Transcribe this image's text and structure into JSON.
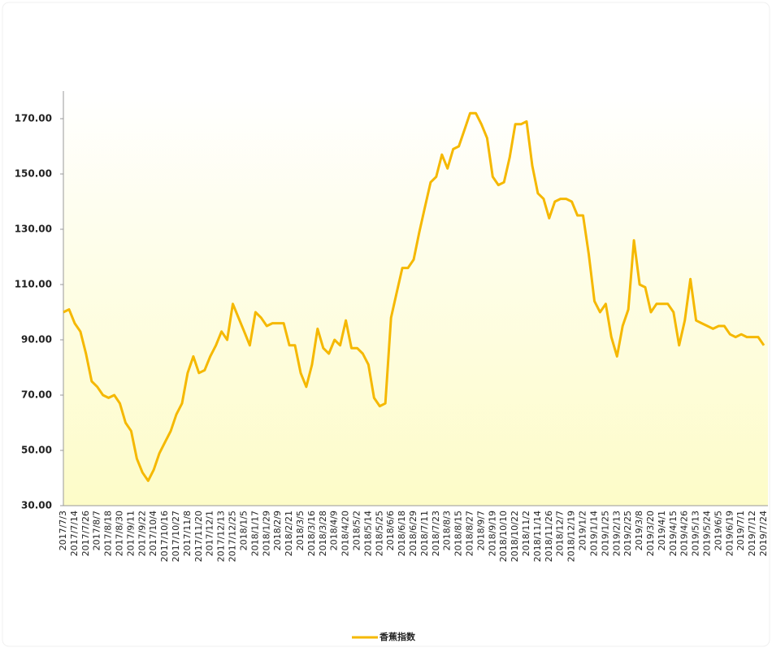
{
  "chart_data": {
    "type": "line",
    "categories": [
      "2017/7/3",
      null,
      "2017/7/14",
      null,
      "2017/7/26",
      null,
      "2017/8/7",
      null,
      "2017/8/18",
      null,
      "2017/8/30",
      null,
      "2017/9/11",
      null,
      "2017/9/22",
      null,
      "2017/10/4",
      null,
      "2017/10/16",
      null,
      "2017/10/27",
      null,
      "2017/11/8",
      null,
      "2017/11/20",
      null,
      "2017/12/1",
      null,
      "2017/12/13",
      null,
      "2017/12/25",
      null,
      "2018/1/5",
      null,
      "2018/1/17",
      null,
      "2018/1/29",
      null,
      "2018/2/9",
      null,
      "2018/2/21",
      null,
      "2018/3/5",
      null,
      "2018/3/16",
      null,
      "2018/3/28",
      null,
      "2018/4/9",
      null,
      "2018/4/20",
      null,
      "2018/5/2",
      null,
      "2018/5/14",
      null,
      "2018/5/25",
      null,
      "2018/6/6",
      null,
      "2018/6/18",
      null,
      "2018/6/29",
      null,
      "2018/7/11",
      null,
      "2018/7/23",
      null,
      "2018/8/3",
      null,
      "2018/8/15",
      null,
      "2018/8/27",
      null,
      "2018/9/7",
      null,
      "2018/9/19",
      null,
      "2018/10/10",
      null,
      "2018/10/22",
      null,
      "2018/11/2",
      null,
      "2018/11/14",
      null,
      "2018/11/26",
      null,
      "2018/12/7",
      null,
      "2018/12/19",
      null,
      "2019/1/2",
      null,
      "2019/1/14",
      null,
      "2019/1/25",
      null,
      "2019/2/13",
      null,
      "2019/2/25",
      null,
      "2019/3/8",
      null,
      "2019/3/20",
      null,
      "2019/4/1",
      null,
      "2019/4/15",
      null,
      "2019/4/26",
      null,
      "2019/5/13",
      null,
      "2019/5/24",
      null,
      "2019/6/5",
      null,
      "2019/6/19",
      null,
      "2019/7/1",
      null,
      "2019/7/12",
      null,
      "2019/7/24"
    ],
    "series": [
      {
        "name": "香蕉指数",
        "color": "#f5b800",
        "values": [
          100,
          101,
          96,
          93,
          85,
          75,
          73,
          70,
          69,
          70,
          67,
          60,
          57,
          47,
          42,
          39,
          43,
          49,
          53,
          57,
          63,
          67,
          78,
          84,
          78,
          79,
          84,
          88,
          93,
          90,
          103,
          98,
          93,
          88,
          100,
          98,
          95,
          96,
          96,
          96,
          88,
          88,
          78,
          73,
          81,
          94,
          87,
          85,
          90,
          88,
          97,
          87,
          87,
          85,
          81,
          69,
          66,
          67,
          98,
          107,
          116,
          116,
          119,
          129,
          138,
          147,
          149,
          157,
          152,
          159,
          160,
          166,
          172,
          172,
          168,
          163,
          149,
          146,
          147,
          156,
          168,
          168,
          169,
          153,
          143,
          141,
          134,
          140,
          141,
          141,
          140,
          135,
          135,
          121,
          104,
          100,
          103,
          91,
          84,
          95,
          101,
          126,
          110,
          109,
          100,
          103,
          103,
          103,
          100,
          88,
          97,
          112,
          97,
          96,
          95,
          94,
          95,
          95,
          92,
          91,
          92,
          91,
          91,
          91,
          88
        ]
      }
    ],
    "ylim": [
      30,
      180
    ],
    "yticks": [
      {
        "value": 30,
        "label": "30.00"
      },
      {
        "value": 50,
        "label": "50.00"
      },
      {
        "value": 70,
        "label": "70.00"
      },
      {
        "value": 90,
        "label": "90.00"
      },
      {
        "value": 110,
        "label": "110.00"
      },
      {
        "value": 130,
        "label": "130.00"
      },
      {
        "value": 150,
        "label": "150.00"
      },
      {
        "value": 170,
        "label": "170.00"
      }
    ],
    "legend": "bottom"
  }
}
